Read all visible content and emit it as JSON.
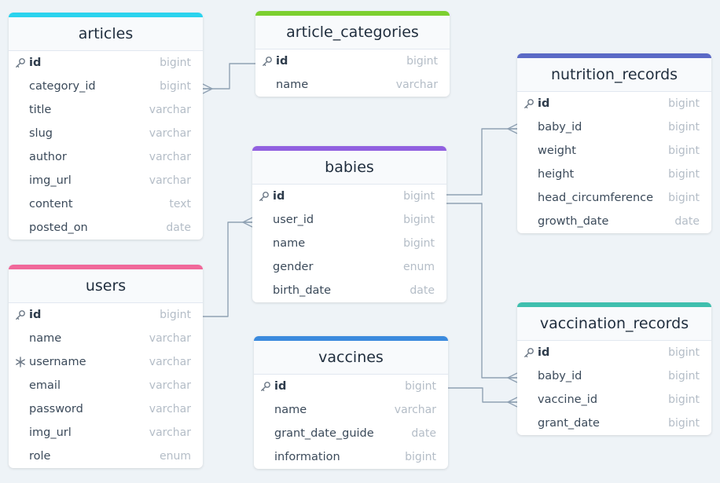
{
  "colors": {
    "articles": "#2ad3ee",
    "article_categories": "#7ccf2f",
    "babies": "#9160e0",
    "users": "#f0689a",
    "vaccines": "#3b8ade",
    "nutrition_records": "#5b6ac6",
    "vaccination_records": "#3fbfae",
    "connector": "#8fa1b3"
  },
  "tables": {
    "articles": {
      "name": "articles",
      "fields": [
        {
          "name": "id",
          "type": "bigint",
          "key": "pk"
        },
        {
          "name": "category_id",
          "type": "bigint"
        },
        {
          "name": "title",
          "type": "varchar"
        },
        {
          "name": "slug",
          "type": "varchar"
        },
        {
          "name": "author",
          "type": "varchar"
        },
        {
          "name": "img_url",
          "type": "varchar"
        },
        {
          "name": "content",
          "type": "text"
        },
        {
          "name": "posted_on",
          "type": "date"
        }
      ]
    },
    "article_categories": {
      "name": "article_categories",
      "fields": [
        {
          "name": "id",
          "type": "bigint",
          "key": "pk"
        },
        {
          "name": "name",
          "type": "varchar"
        }
      ]
    },
    "babies": {
      "name": "babies",
      "fields": [
        {
          "name": "id",
          "type": "bigint",
          "key": "pk"
        },
        {
          "name": "user_id",
          "type": "bigint"
        },
        {
          "name": "name",
          "type": "bigint"
        },
        {
          "name": "gender",
          "type": "enum"
        },
        {
          "name": "birth_date",
          "type": "date"
        }
      ]
    },
    "users": {
      "name": "users",
      "fields": [
        {
          "name": "id",
          "type": "bigint",
          "key": "pk"
        },
        {
          "name": "name",
          "type": "varchar"
        },
        {
          "name": "username",
          "type": "varchar",
          "key": "unique"
        },
        {
          "name": "email",
          "type": "varchar"
        },
        {
          "name": "password",
          "type": "varchar"
        },
        {
          "name": "img_url",
          "type": "varchar"
        },
        {
          "name": "role",
          "type": "enum"
        }
      ]
    },
    "vaccines": {
      "name": "vaccines",
      "fields": [
        {
          "name": "id",
          "type": "bigint",
          "key": "pk"
        },
        {
          "name": "name",
          "type": "varchar"
        },
        {
          "name": "grant_date_guide",
          "type": "date"
        },
        {
          "name": "information",
          "type": "bigint"
        }
      ]
    },
    "nutrition_records": {
      "name": "nutrition_records",
      "fields": [
        {
          "name": "id",
          "type": "bigint",
          "key": "pk"
        },
        {
          "name": "baby_id",
          "type": "bigint"
        },
        {
          "name": "weight",
          "type": "bigint"
        },
        {
          "name": "height",
          "type": "bigint"
        },
        {
          "name": "head_circumference",
          "type": "bigint"
        },
        {
          "name": "growth_date",
          "type": "date"
        }
      ]
    },
    "vaccination_records": {
      "name": "vaccination_records",
      "fields": [
        {
          "name": "id",
          "type": "bigint",
          "key": "pk"
        },
        {
          "name": "baby_id",
          "type": "bigint"
        },
        {
          "name": "vaccine_id",
          "type": "bigint"
        },
        {
          "name": "grant_date",
          "type": "bigint"
        }
      ]
    }
  }
}
